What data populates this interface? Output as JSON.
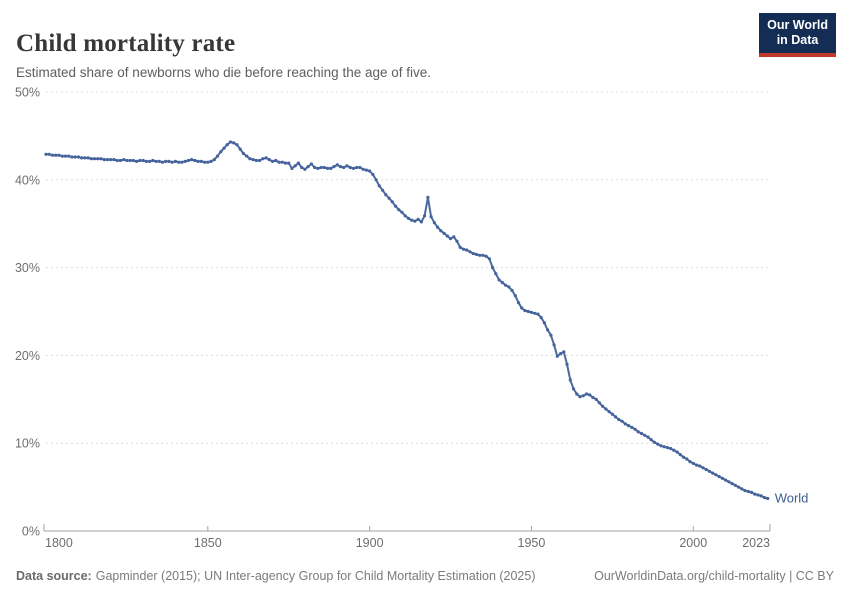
{
  "header": {
    "title": "Child mortality rate",
    "subtitle": "Estimated share of newborns who die before reaching the age of five."
  },
  "logo": {
    "line1": "Our World",
    "line2": "in Data"
  },
  "colors": {
    "logo_bg": "#142d55",
    "logo_accent": "#c0392b",
    "line": "#4c6a9c",
    "point": "#46639d",
    "entity_label": "#3d5c8f",
    "gridline": "#dcdcdc",
    "axis": "#a3a3a3",
    "tick_text": "#6e6e6e"
  },
  "chart_data": {
    "type": "line",
    "title": "Child mortality rate",
    "unit": "%",
    "grid": "horizontal-dashed",
    "legend_position": "end-of-line-label",
    "ylim": [
      0,
      50
    ],
    "yticks": [
      {
        "value": 0,
        "label": "0%"
      },
      {
        "value": 10,
        "label": "10%"
      },
      {
        "value": 20,
        "label": "20%"
      },
      {
        "value": 30,
        "label": "30%"
      },
      {
        "value": 40,
        "label": "40%"
      },
      {
        "value": 50,
        "label": "50%"
      }
    ],
    "xticks": [
      {
        "value": 1800,
        "label": "1800"
      },
      {
        "value": 1850,
        "label": "1850"
      },
      {
        "value": 1900,
        "label": "1900"
      },
      {
        "value": 1950,
        "label": "1950"
      },
      {
        "value": 2000,
        "label": "2000"
      },
      {
        "value": 2023,
        "label": "2023"
      }
    ],
    "series": [
      {
        "name": "World",
        "start_year": 1800,
        "end_year": 2023,
        "values": [
          42.9,
          42.9,
          42.8,
          42.8,
          42.8,
          42.7,
          42.7,
          42.7,
          42.6,
          42.6,
          42.6,
          42.5,
          42.5,
          42.5,
          42.4,
          42.4,
          42.4,
          42.4,
          42.3,
          42.3,
          42.3,
          42.3,
          42.2,
          42.2,
          42.3,
          42.2,
          42.2,
          42.2,
          42.1,
          42.2,
          42.2,
          42.1,
          42.1,
          42.2,
          42.1,
          42.1,
          42.0,
          42.1,
          42.1,
          42.0,
          42.1,
          42.0,
          42.0,
          42.1,
          42.2,
          42.3,
          42.2,
          42.1,
          42.1,
          42.0,
          42.0,
          42.1,
          42.3,
          42.7,
          43.2,
          43.6,
          44.0,
          44.3,
          44.2,
          44.0,
          43.5,
          43.0,
          42.7,
          42.4,
          42.3,
          42.2,
          42.2,
          42.4,
          42.5,
          42.3,
          42.1,
          42.2,
          42.0,
          42.0,
          41.9,
          41.9,
          41.3,
          41.6,
          41.9,
          41.4,
          41.2,
          41.5,
          41.8,
          41.4,
          41.3,
          41.4,
          41.4,
          41.3,
          41.3,
          41.5,
          41.7,
          41.5,
          41.4,
          41.6,
          41.4,
          41.3,
          41.4,
          41.4,
          41.2,
          41.1,
          41.0,
          40.6,
          40.0,
          39.3,
          38.8,
          38.3,
          37.9,
          37.5,
          37.0,
          36.6,
          36.3,
          35.9,
          35.6,
          35.4,
          35.3,
          35.5,
          35.2,
          35.9,
          38.0,
          35.8,
          35.1,
          34.6,
          34.2,
          33.9,
          33.6,
          33.3,
          33.5,
          33.0,
          32.3,
          32.1,
          32.0,
          31.8,
          31.6,
          31.5,
          31.4,
          31.4,
          31.3,
          31.0,
          30.0,
          29.3,
          28.6,
          28.3,
          28.0,
          27.8,
          27.4,
          26.8,
          26.0,
          25.4,
          25.1,
          25.0,
          24.9,
          24.8,
          24.7,
          24.3,
          23.7,
          22.9,
          22.3,
          21.2,
          19.9,
          20.2,
          20.4,
          19.0,
          17.2,
          16.2,
          15.6,
          15.3,
          15.4,
          15.6,
          15.5,
          15.2,
          15.0,
          14.6,
          14.2,
          13.9,
          13.6,
          13.3,
          13.0,
          12.7,
          12.5,
          12.2,
          12.0,
          11.8,
          11.6,
          11.3,
          11.1,
          10.9,
          10.7,
          10.4,
          10.1,
          9.9,
          9.7,
          9.6,
          9.5,
          9.4,
          9.2,
          9.0,
          8.7,
          8.4,
          8.2,
          7.9,
          7.7,
          7.5,
          7.4,
          7.2,
          7.0,
          6.8,
          6.6,
          6.4,
          6.2,
          6.0,
          5.8,
          5.6,
          5.4,
          5.2,
          5.0,
          4.8,
          4.6,
          4.5,
          4.4,
          4.2,
          4.1,
          4.0,
          3.8,
          3.7
        ]
      }
    ]
  },
  "footer": {
    "source_label": "Data source:",
    "source_text": "Gapminder (2015); UN Inter-agency Group for Child Mortality Estimation (2025)",
    "link_text": "OurWorldinData.org/child-mortality | CC BY"
  }
}
